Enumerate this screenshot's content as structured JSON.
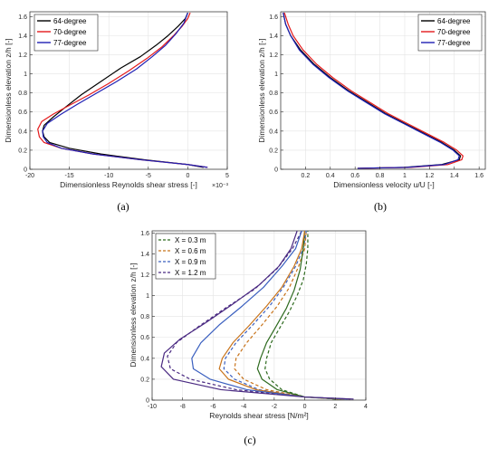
{
  "chart_data": [
    {
      "type": "line",
      "panel": "(a)",
      "xlabel": "Dimensionless Reynolds shear stress [-]",
      "ylabel": "Dimensionless elevation z/h [-]",
      "x_multiplier_label": "×10⁻³",
      "xlim": [
        -20,
        5
      ],
      "ylim": [
        0,
        1.65
      ],
      "xticks": [
        "-20",
        "-15",
        "-10",
        "-5",
        "0",
        "5"
      ],
      "yticks": [
        "0",
        "0.2",
        "0.4",
        "0.6",
        "0.8",
        "1",
        "1.2",
        "1.4",
        "1.6"
      ],
      "grid": true,
      "legend": "top-left",
      "series": [
        {
          "name": "64-degree",
          "color": "#000000",
          "x": [
            2.0,
            0.0,
            -5.5,
            -11.0,
            -15.0,
            -17.5,
            -18.2,
            -18.4,
            -18.2,
            -17.0,
            -15.5,
            -13.5,
            -11.0,
            -8.5,
            -6.0,
            -4.0,
            -2.5,
            -1.2,
            -0.3,
            0.0
          ],
          "y": [
            0.02,
            0.05,
            0.1,
            0.16,
            0.22,
            0.28,
            0.34,
            0.4,
            0.46,
            0.55,
            0.65,
            0.78,
            0.92,
            1.06,
            1.18,
            1.3,
            1.4,
            1.5,
            1.58,
            1.64
          ]
        },
        {
          "name": "70-degree",
          "color": "#e41a1c",
          "x": [
            2.5,
            0.0,
            -6.0,
            -12.0,
            -16.0,
            -18.2,
            -18.8,
            -19.0,
            -18.5,
            -17.0,
            -15.0,
            -12.5,
            -10.0,
            -7.5,
            -5.2,
            -3.3,
            -1.8,
            -0.7,
            0.0,
            0.3
          ],
          "y": [
            0.02,
            0.05,
            0.1,
            0.16,
            0.22,
            0.28,
            0.34,
            0.42,
            0.5,
            0.58,
            0.67,
            0.78,
            0.9,
            1.03,
            1.16,
            1.28,
            1.4,
            1.5,
            1.58,
            1.64
          ]
        },
        {
          "name": "77-degree",
          "color": "#1f1fb4",
          "x": [
            2.5,
            0.0,
            -6.0,
            -12.0,
            -16.0,
            -17.8,
            -18.3,
            -18.4,
            -17.8,
            -16.0,
            -14.0,
            -11.5,
            -9.0,
            -6.5,
            -4.5,
            -2.8,
            -1.5,
            -0.5,
            0.0
          ],
          "y": [
            0.02,
            0.05,
            0.1,
            0.16,
            0.22,
            0.28,
            0.34,
            0.4,
            0.48,
            0.58,
            0.68,
            0.8,
            0.92,
            1.05,
            1.18,
            1.3,
            1.42,
            1.53,
            1.64
          ]
        }
      ]
    },
    {
      "type": "line",
      "panel": "(b)",
      "xlabel": "Dimensionless velocity u/U [-]",
      "ylabel": "Dimensionless elevation z/h [-]",
      "xlim": [
        0,
        1.65
      ],
      "ylim": [
        0,
        1.65
      ],
      "xticks": [
        "0.2",
        "0.4",
        "0.6",
        "0.8",
        "1",
        "1.2",
        "1.4",
        "1.6"
      ],
      "yticks": [
        "0",
        "0.2",
        "0.4",
        "0.6",
        "0.8",
        "1",
        "1.2",
        "1.4",
        "1.6"
      ],
      "grid": true,
      "legend": "top-right",
      "series": [
        {
          "name": "64-degree",
          "color": "#000000",
          "x": [
            0.62,
            1.0,
            1.3,
            1.44,
            1.45,
            1.4,
            1.3,
            1.15,
            1.0,
            0.85,
            0.7,
            0.55,
            0.4,
            0.27,
            0.16,
            0.08,
            0.04,
            0.02
          ],
          "y": [
            0.01,
            0.02,
            0.05,
            0.1,
            0.14,
            0.2,
            0.28,
            0.38,
            0.48,
            0.58,
            0.7,
            0.82,
            0.96,
            1.1,
            1.25,
            1.4,
            1.52,
            1.64
          ]
        },
        {
          "name": "70-degree",
          "color": "#e41a1c",
          "x": [
            0.62,
            1.05,
            1.35,
            1.46,
            1.47,
            1.42,
            1.32,
            1.17,
            1.02,
            0.87,
            0.72,
            0.57,
            0.42,
            0.29,
            0.18,
            0.1,
            0.06,
            0.03
          ],
          "y": [
            0.01,
            0.02,
            0.05,
            0.1,
            0.14,
            0.2,
            0.28,
            0.38,
            0.48,
            0.58,
            0.7,
            0.82,
            0.96,
            1.1,
            1.25,
            1.4,
            1.52,
            1.64
          ]
        },
        {
          "name": "77-degree",
          "color": "#1f1fb4",
          "x": [
            0.62,
            1.02,
            1.32,
            1.43,
            1.44,
            1.39,
            1.29,
            1.14,
            0.99,
            0.84,
            0.69,
            0.54,
            0.39,
            0.26,
            0.15,
            0.08,
            0.04,
            0.02
          ],
          "y": [
            0.01,
            0.02,
            0.05,
            0.1,
            0.14,
            0.2,
            0.28,
            0.38,
            0.48,
            0.58,
            0.7,
            0.82,
            0.96,
            1.1,
            1.25,
            1.4,
            1.52,
            1.64
          ]
        }
      ]
    },
    {
      "type": "line",
      "panel": "(c)",
      "xlabel": "Reynolds shear stress [N/m²]",
      "ylabel": "Dimensionless elevation z/h [-]",
      "xlim": [
        -10,
        4
      ],
      "ylim": [
        0,
        1.62
      ],
      "xticks": [
        "-10",
        "-8",
        "-6",
        "-4",
        "-2",
        "0",
        "2",
        "4"
      ],
      "yticks": [
        "0",
        "0.2",
        "0.4",
        "0.6",
        "0.8",
        "1",
        "1.2",
        "1.4",
        "1.6"
      ],
      "grid": true,
      "legend": "top-left",
      "series": [
        {
          "name": "X = 0.3 m",
          "color": "#2d6a1e",
          "dash": true,
          "x": [
            2.0,
            0.0,
            -1.5,
            -2.3,
            -2.6,
            -2.5,
            -2.2,
            -1.6,
            -1.0,
            -0.5,
            -0.1,
            0.1,
            0.2,
            0.2
          ],
          "y": [
            0.01,
            0.03,
            0.1,
            0.2,
            0.3,
            0.4,
            0.55,
            0.7,
            0.85,
            1.0,
            1.15,
            1.3,
            1.45,
            1.62
          ]
        },
        {
          "name": "X = 0.6 m",
          "color": "#c8731a",
          "dash": true,
          "x": [
            2.2,
            0.0,
            -2.5,
            -4.0,
            -4.6,
            -4.5,
            -3.8,
            -2.8,
            -1.8,
            -1.0,
            -0.4,
            0.0,
            0.1
          ],
          "y": [
            0.01,
            0.03,
            0.1,
            0.2,
            0.3,
            0.4,
            0.55,
            0.72,
            0.9,
            1.08,
            1.28,
            1.45,
            1.62
          ]
        },
        {
          "name": "X = 0.9 m",
          "color": "#3a5fbf",
          "dash": true,
          "x": [
            2.5,
            0.0,
            -3.0,
            -4.6,
            -5.3,
            -5.2,
            -4.5,
            -3.4,
            -2.3,
            -1.4,
            -0.6,
            -0.1,
            0.1
          ],
          "y": [
            0.01,
            0.03,
            0.1,
            0.2,
            0.3,
            0.4,
            0.55,
            0.72,
            0.9,
            1.08,
            1.28,
            1.45,
            1.62
          ]
        },
        {
          "name": "X = 1.2 m",
          "color": "#4a2a82",
          "dash": true,
          "x": [
            3.0,
            0.0,
            -4.5,
            -7.5,
            -8.8,
            -9.0,
            -8.4,
            -7.0,
            -5.2,
            -3.3,
            -1.8,
            -0.8,
            -0.2
          ],
          "y": [
            0.01,
            0.03,
            0.1,
            0.2,
            0.3,
            0.42,
            0.55,
            0.7,
            0.88,
            1.06,
            1.26,
            1.45,
            1.62
          ]
        },
        {
          "name": "",
          "color": "#2d6a1e",
          "dash": false,
          "x": [
            2.4,
            0.0,
            -1.8,
            -2.8,
            -3.1,
            -2.9,
            -2.5,
            -1.9,
            -1.2,
            -0.7,
            -0.3,
            -0.1,
            0.0
          ],
          "y": [
            0.01,
            0.03,
            0.1,
            0.2,
            0.3,
            0.4,
            0.55,
            0.7,
            0.88,
            1.05,
            1.25,
            1.45,
            1.62
          ]
        },
        {
          "name": "",
          "color": "#c8731a",
          "dash": false,
          "x": [
            2.6,
            0.0,
            -3.2,
            -5.0,
            -5.6,
            -5.4,
            -4.7,
            -3.6,
            -2.5,
            -1.5,
            -0.7,
            -0.2,
            0.0
          ],
          "y": [
            0.01,
            0.03,
            0.1,
            0.2,
            0.3,
            0.4,
            0.55,
            0.72,
            0.9,
            1.08,
            1.28,
            1.45,
            1.62
          ]
        },
        {
          "name": "",
          "color": "#3a5fbf",
          "dash": false,
          "x": [
            2.8,
            0.0,
            -3.8,
            -6.2,
            -7.3,
            -7.4,
            -6.8,
            -5.6,
            -4.1,
            -2.7,
            -1.5,
            -0.6,
            -0.2
          ],
          "y": [
            0.01,
            0.03,
            0.1,
            0.2,
            0.3,
            0.4,
            0.55,
            0.72,
            0.9,
            1.08,
            1.28,
            1.45,
            1.62
          ]
        },
        {
          "name": "",
          "color": "#4a2a82",
          "dash": false,
          "x": [
            3.2,
            0.0,
            -5.5,
            -8.6,
            -9.4,
            -9.2,
            -8.2,
            -6.5,
            -4.7,
            -3.0,
            -1.7,
            -0.9,
            -0.5
          ],
          "y": [
            0.01,
            0.03,
            0.1,
            0.2,
            0.32,
            0.45,
            0.58,
            0.74,
            0.92,
            1.1,
            1.28,
            1.45,
            1.62
          ]
        }
      ]
    }
  ]
}
